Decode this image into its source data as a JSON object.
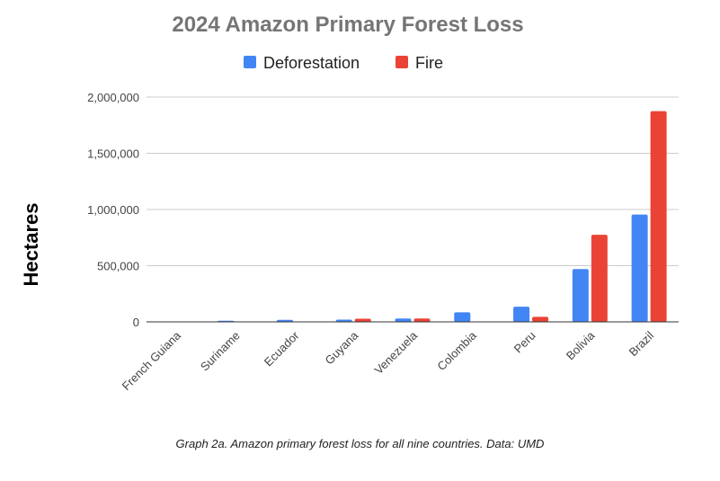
{
  "chart_data": {
    "type": "bar",
    "title": "2024 Amazon Primary Forest Loss",
    "xlabel": "",
    "ylabel": "Hectares",
    "ylim": [
      0,
      2000000
    ],
    "yticks": [
      0,
      500000,
      1000000,
      1500000,
      2000000
    ],
    "ytick_labels": [
      "0",
      "500,000",
      "1,000,000",
      "1,500,000",
      "2,000,000"
    ],
    "grid": true,
    "legend_position": "top-center",
    "categories": [
      "French Guiana",
      "Suriname",
      "Ecuador",
      "Guyana",
      "Venezuela",
      "Colombia",
      "Peru",
      "Bolivia",
      "Brazil"
    ],
    "series": [
      {
        "name": "Deforestation",
        "color": "#4285f4",
        "values": [
          2000,
          10000,
          18000,
          20000,
          30000,
          85000,
          135000,
          470000,
          955000
        ]
      },
      {
        "name": "Fire",
        "color": "#ea4335",
        "values": [
          500,
          1500,
          2000,
          28000,
          30000,
          3000,
          45000,
          775000,
          1875000
        ]
      }
    ]
  },
  "caption": "Graph 2a. Amazon primary forest loss for all nine countries. Data: UMD"
}
